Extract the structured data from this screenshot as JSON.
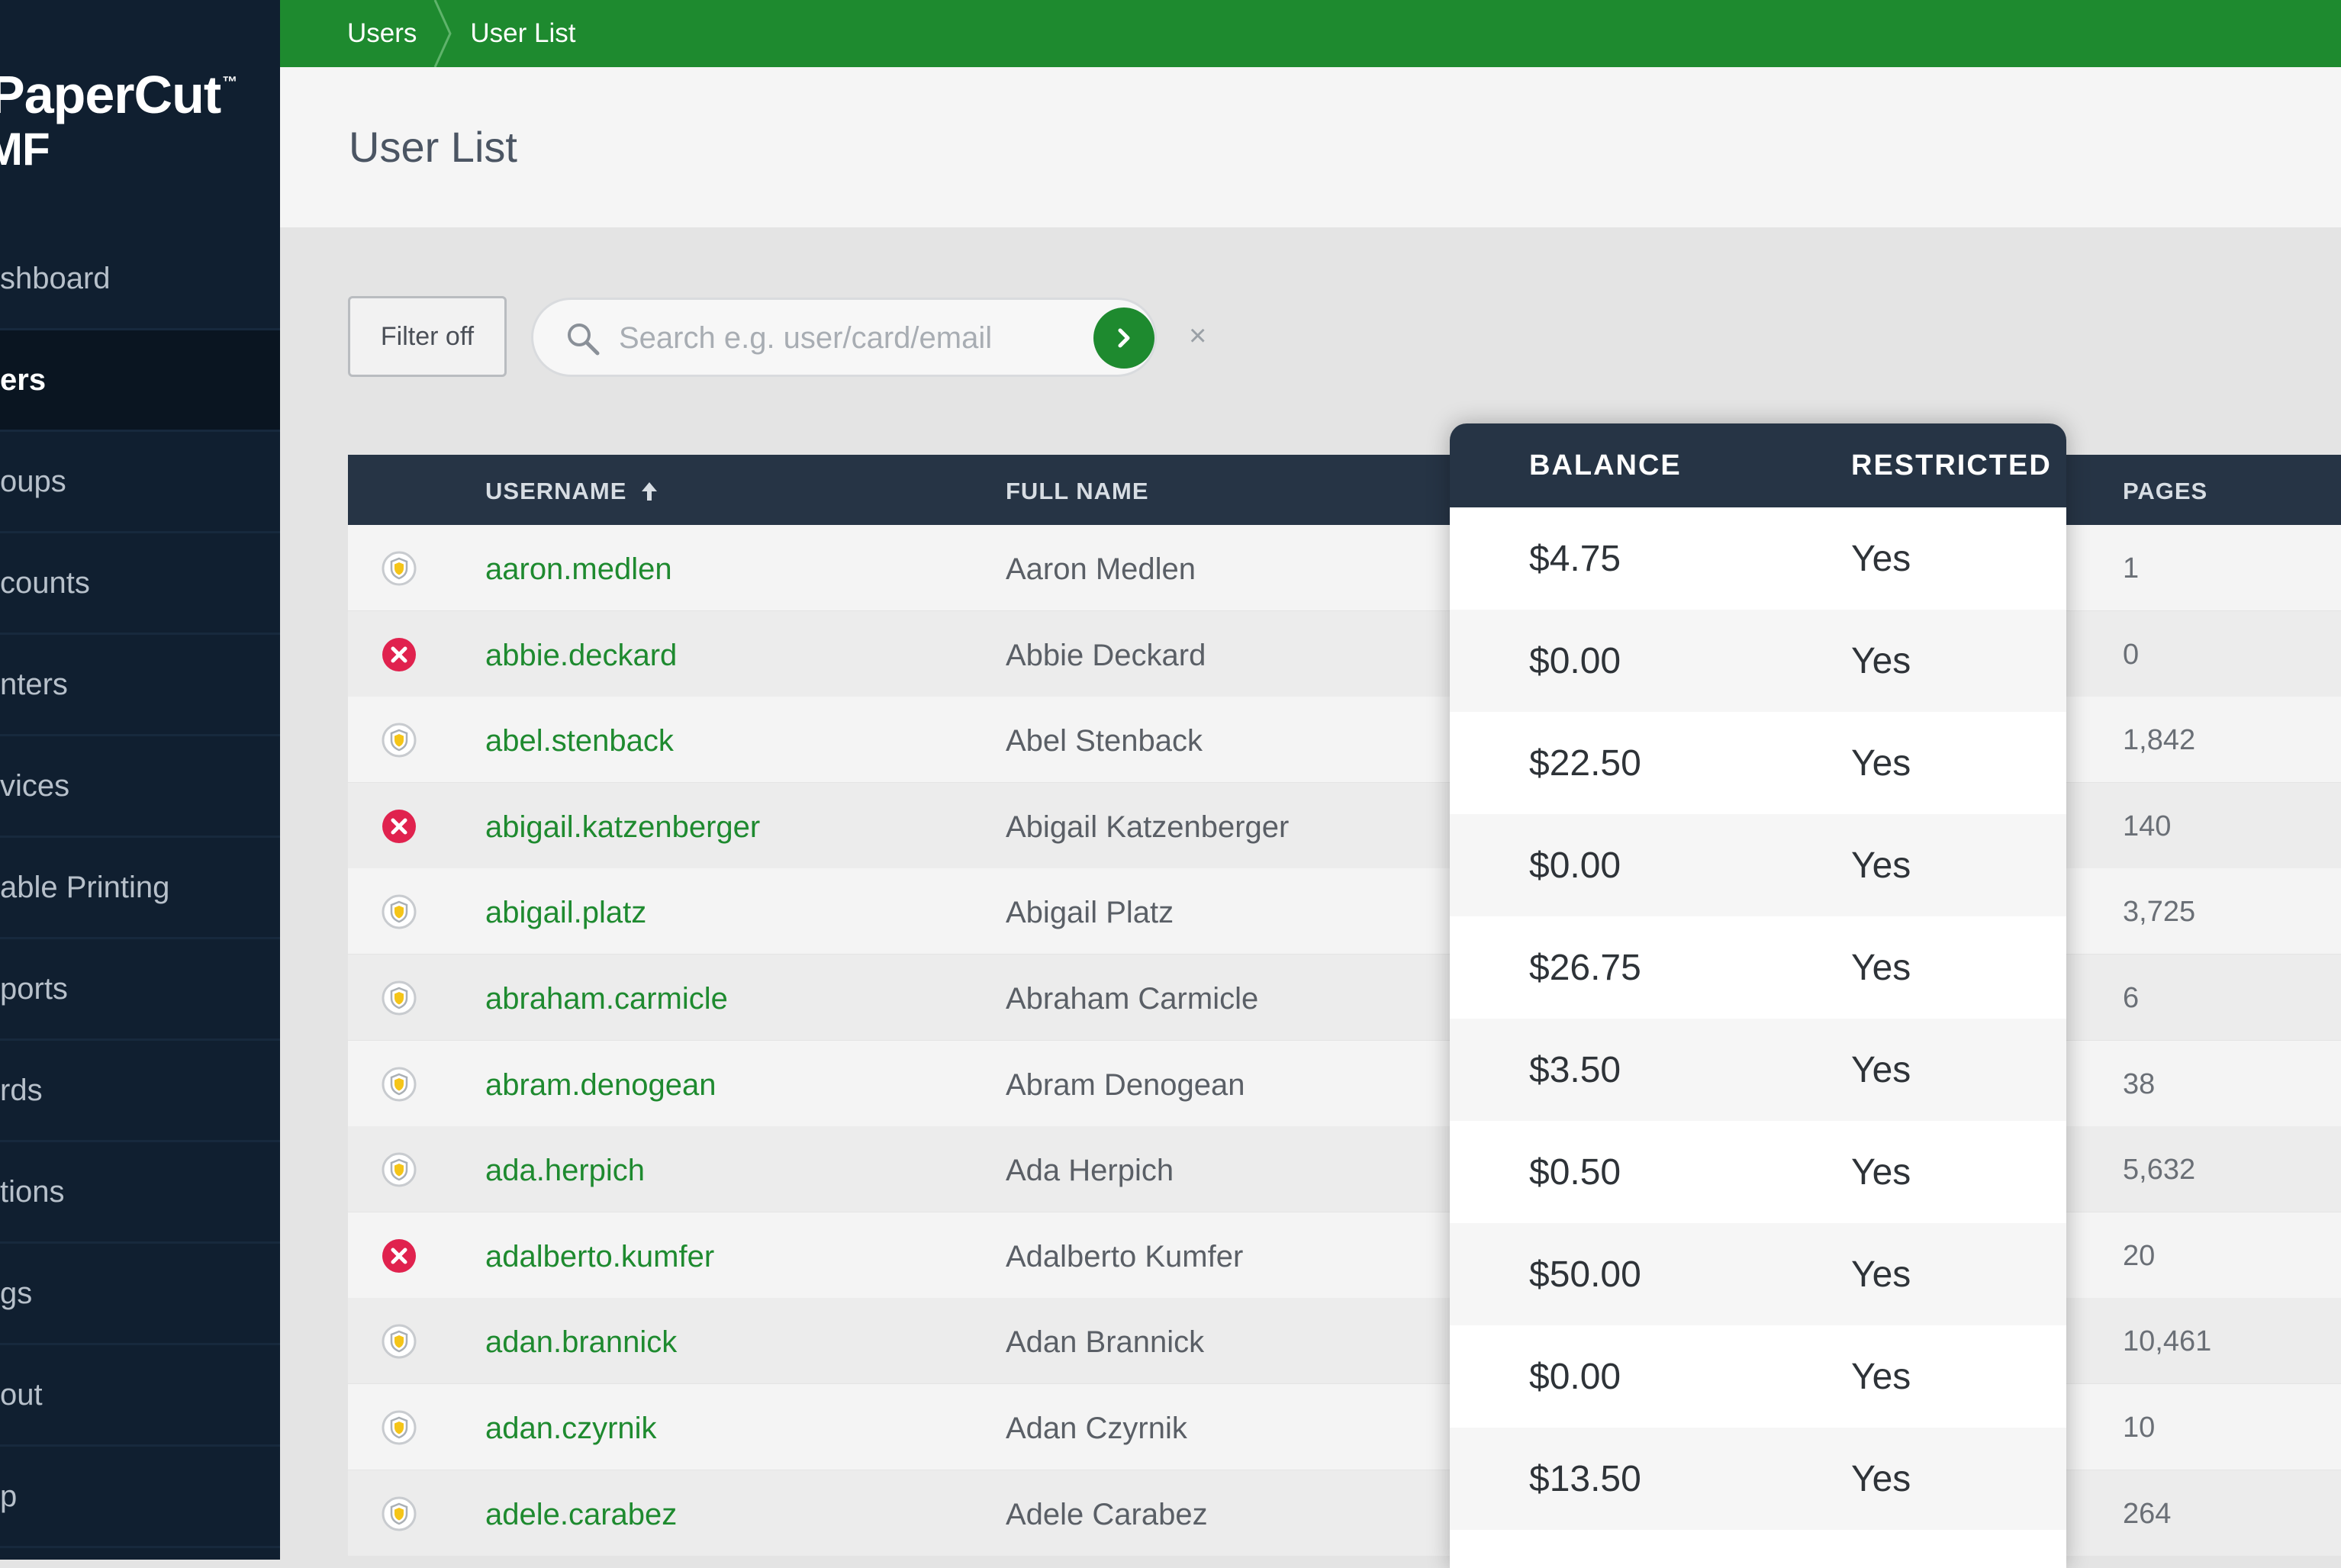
{
  "app": {
    "logo_main": "PaperCut",
    "logo_sub": "MF",
    "logo_mark": "™"
  },
  "sidebar": {
    "items": [
      {
        "label": "shboard",
        "active": false
      },
      {
        "label": "ers",
        "active": true
      },
      {
        "label": "oups",
        "active": false
      },
      {
        "label": "counts",
        "active": false
      },
      {
        "label": "nters",
        "active": false
      },
      {
        "label": "vices",
        "active": false
      },
      {
        "label": "able Printing",
        "active": false
      },
      {
        "label": "ports",
        "active": false
      },
      {
        "label": "rds",
        "active": false
      },
      {
        "label": "tions",
        "active": false
      },
      {
        "label": "gs",
        "active": false
      },
      {
        "label": "out",
        "active": false
      },
      {
        "label": "p",
        "active": false
      }
    ]
  },
  "breadcrumb": {
    "items": [
      "Users",
      "User List"
    ]
  },
  "page": {
    "title": "User List"
  },
  "filter": {
    "button_label": "Filter off",
    "search_placeholder": "Search e.g. user/card/email",
    "clear_label": "×"
  },
  "table": {
    "columns": {
      "username": "USERNAME",
      "full_name": "FULL NAME",
      "balance": "BALANCE",
      "restricted": "RESTRICTED",
      "pages": "PAGES"
    },
    "sort_column": "username",
    "sort_direction": "ascending",
    "rows": [
      {
        "status": "shield-icon",
        "username": "aaron.medlen",
        "full_name": "Aaron Medlen",
        "balance": "$4.75",
        "restricted": "Yes",
        "pages": "1"
      },
      {
        "status": "disabled-icon",
        "username": "abbie.deckard",
        "full_name": "Abbie Deckard",
        "balance": "$0.00",
        "restricted": "Yes",
        "pages": "0"
      },
      {
        "status": "shield-icon",
        "username": "abel.stenback",
        "full_name": "Abel Stenback",
        "balance": "$22.50",
        "restricted": "Yes",
        "pages": "1,842"
      },
      {
        "status": "disabled-icon",
        "username": "abigail.katzenberger",
        "full_name": "Abigail Katzenberger",
        "balance": "$0.00",
        "restricted": "Yes",
        "pages": "140"
      },
      {
        "status": "shield-icon",
        "username": "abigail.platz",
        "full_name": "Abigail Platz",
        "balance": "$26.75",
        "restricted": "Yes",
        "pages": "3,725"
      },
      {
        "status": "shield-icon",
        "username": "abraham.carmicle",
        "full_name": "Abraham Carmicle",
        "balance": "$3.50",
        "restricted": "Yes",
        "pages": "6"
      },
      {
        "status": "shield-icon",
        "username": "abram.denogean",
        "full_name": "Abram Denogean",
        "balance": "$0.50",
        "restricted": "Yes",
        "pages": "38"
      },
      {
        "status": "shield-icon",
        "username": "ada.herpich",
        "full_name": "Ada Herpich",
        "balance": "$50.00",
        "restricted": "Yes",
        "pages": "5,632"
      },
      {
        "status": "disabled-icon",
        "username": "adalberto.kumfer",
        "full_name": "Adalberto Kumfer",
        "balance": "$0.00",
        "restricted": "Yes",
        "pages": "20"
      },
      {
        "status": "shield-icon",
        "username": "adan.brannick",
        "full_name": "Adan Brannick",
        "balance": "$13.50",
        "restricted": "Yes",
        "pages": "10,461"
      },
      {
        "status": "shield-icon",
        "username": "adan.czyrnik",
        "full_name": "Adan Czyrnik",
        "balance": "",
        "restricted": "",
        "pages": "10"
      },
      {
        "status": "shield-icon",
        "username": "adele.carabez",
        "full_name": "Adele Carabez",
        "balance": "",
        "restricted": "",
        "pages": "264"
      }
    ]
  },
  "colors": {
    "brand_green": "#1e8a2f",
    "sidebar_bg": "#101f30",
    "table_header_bg": "#263445",
    "disabled_red": "#e0224e",
    "shield_yellow": "#f5c518"
  }
}
